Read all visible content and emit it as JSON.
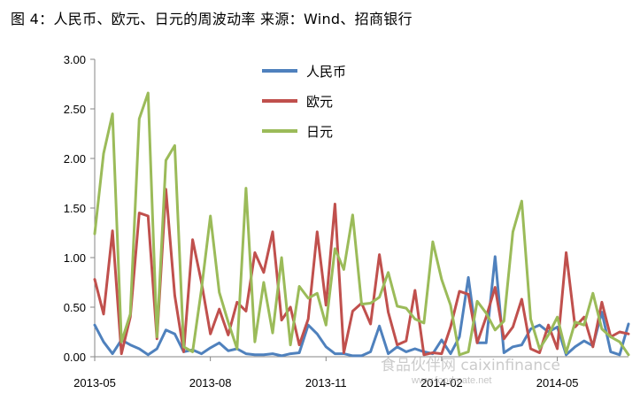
{
  "figure": {
    "title": "图 4：人民币、欧元、日元的周波动率    来源：Wind、招商银行"
  },
  "watermark": {
    "text": "食品伙伴网 caixinfinance",
    "sub": "www.foodmate.net"
  },
  "chart_data": {
    "type": "line",
    "ylim": [
      0,
      3
    ],
    "yticks": [
      "3.00",
      "2.50",
      "2.00",
      "1.50",
      "1.00",
      "0.50",
      "0.00"
    ],
    "ytick_values": [
      3,
      2.5,
      2,
      1.5,
      1,
      0.5,
      0
    ],
    "xtick_labels": [
      "2013-05",
      "2013-08",
      "2013-11",
      "2014-02",
      "2014-05"
    ],
    "xtick_index": [
      0,
      13,
      26,
      39,
      52
    ],
    "grid": false,
    "legend_position": "top-center",
    "series": [
      {
        "name": "人民币",
        "color": "#4f81bd",
        "values": [
          0.32,
          0.15,
          0.03,
          0.17,
          0.12,
          0.08,
          0.02,
          0.08,
          0.27,
          0.23,
          0.05,
          0.07,
          0.03,
          0.09,
          0.14,
          0.06,
          0.08,
          0.03,
          0.02,
          0.02,
          0.03,
          0.01,
          0.03,
          0.04,
          0.32,
          0.23,
          0.1,
          0.03,
          0.03,
          0.01,
          0.01,
          0.05,
          0.31,
          0.03,
          0.1,
          0.05,
          0.08,
          0.05,
          0.03,
          0.17,
          0.03,
          0.2,
          0.8,
          0.14,
          0.14,
          1.01,
          0.04,
          0.1,
          0.12,
          0.28,
          0.32,
          0.25,
          0.3,
          0.02,
          0.1,
          0.16,
          0.11,
          0.45,
          0.05,
          0.02,
          0.33
        ]
      },
      {
        "name": "欧元",
        "color": "#c0504d",
        "values": [
          0.78,
          0.43,
          1.27,
          0.03,
          0.4,
          1.45,
          1.42,
          0.18,
          1.69,
          0.62,
          0.05,
          1.18,
          0.75,
          0.23,
          0.48,
          0.22,
          0.55,
          0.46,
          1.05,
          0.85,
          1.26,
          0.37,
          0.5,
          0.12,
          0.38,
          1.26,
          0.52,
          1.54,
          0.04,
          0.46,
          0.54,
          0.33,
          1.03,
          0.45,
          0.12,
          0.16,
          0.67,
          0.02,
          0.04,
          0.03,
          0.3,
          0.66,
          0.63,
          0.14,
          0.4,
          0.7,
          0.18,
          0.3,
          0.58,
          0.08,
          0.04,
          0.32,
          0.08,
          1.05,
          0.3,
          0.4,
          0.1,
          0.55,
          0.2,
          0.25,
          0.23
        ]
      },
      {
        "name": "日元",
        "color": "#9bbb59",
        "values": [
          1.24,
          2.05,
          2.45,
          0.15,
          0.43,
          2.4,
          2.66,
          0.2,
          1.98,
          2.13,
          0.1,
          0.05,
          0.68,
          1.42,
          0.65,
          0.35,
          0.08,
          1.7,
          0.15,
          0.75,
          0.24,
          1.0,
          0.12,
          0.71,
          0.59,
          0.64,
          0.32,
          1.09,
          0.88,
          1.43,
          0.53,
          0.54,
          0.6,
          0.85,
          0.51,
          0.49,
          0.38,
          0.34,
          1.16,
          0.78,
          0.52,
          0.02,
          0.05,
          0.56,
          0.44,
          0.27,
          0.36,
          1.26,
          1.57,
          0.38,
          0.08,
          0.22,
          0.4,
          0.04,
          0.35,
          0.32,
          0.64,
          0.28,
          0.2,
          0.15,
          0.02
        ]
      }
    ]
  }
}
